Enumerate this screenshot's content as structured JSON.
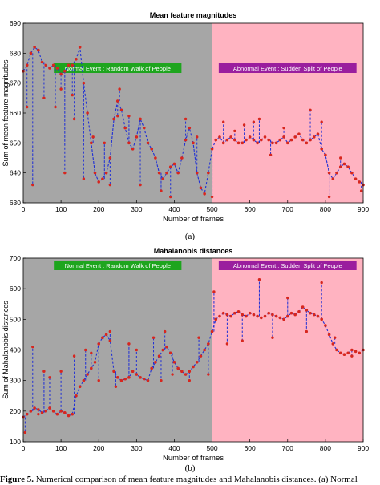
{
  "caption": {
    "prefix": "Figure 5.",
    "text": "Numerical comparison of mean feature magnitudes and Mahalanobis distances. (a) Normal"
  },
  "chart_data": [
    {
      "type": "line",
      "title": "Mean feature magnitudes",
      "panel_label": "(a)",
      "xlabel": "Number of frames",
      "ylabel": "Sum of mean feature magnitudes",
      "xlim": [
        0,
        900
      ],
      "ylim": [
        630,
        690
      ],
      "xticks": [
        0,
        100,
        200,
        300,
        400,
        500,
        600,
        700,
        800,
        900
      ],
      "yticks": [
        630,
        640,
        650,
        660,
        670,
        680,
        690
      ],
      "grid": false,
      "regions": [
        {
          "label": "Normal Event : Random Walk of People",
          "x_start": 0,
          "x_end": 500,
          "color": "#a6a6a6",
          "label_color": "#1ea51e"
        },
        {
          "label": "Abnormal Event : Sudden Split of People",
          "x_start": 500,
          "x_end": 900,
          "color": "#ffb3c1",
          "label_color": "#9a1e9e"
        }
      ],
      "series": [
        {
          "line_color": "#1f2fd6",
          "marker_color": "#d7261e",
          "x": [
            0,
            10,
            20,
            30,
            40,
            50,
            60,
            70,
            80,
            90,
            100,
            110,
            120,
            130,
            140,
            150,
            160,
            170,
            180,
            190,
            200,
            210,
            220,
            230,
            240,
            250,
            260,
            270,
            280,
            290,
            300,
            310,
            320,
            330,
            340,
            350,
            360,
            370,
            380,
            390,
            400,
            410,
            420,
            430,
            440,
            450,
            460,
            470,
            480,
            490,
            500,
            510,
            520,
            530,
            540,
            550,
            560,
            570,
            580,
            590,
            600,
            610,
            620,
            630,
            640,
            650,
            660,
            670,
            680,
            690,
            700,
            710,
            720,
            730,
            740,
            750,
            760,
            770,
            780,
            790,
            800,
            810,
            820,
            830,
            840,
            850,
            860,
            870,
            880,
            890,
            900
          ],
          "y": [
            674,
            676,
            680,
            682,
            681,
            677,
            676,
            675,
            676,
            675,
            673,
            674,
            676,
            676,
            678,
            682,
            670,
            660,
            650,
            640,
            637,
            638,
            640,
            645,
            658,
            664,
            661,
            655,
            650,
            648,
            652,
            658,
            655,
            650,
            648,
            645,
            640,
            638,
            640,
            642,
            643,
            640,
            645,
            651,
            655,
            650,
            640,
            635,
            633,
            640,
            648,
            651,
            652,
            650,
            651,
            652,
            651,
            650,
            650,
            651,
            652,
            651,
            650,
            651,
            652,
            651,
            650,
            650,
            651,
            652,
            650,
            651,
            652,
            653,
            651,
            650,
            651,
            652,
            653,
            648,
            646,
            640,
            638,
            640,
            642,
            643,
            642,
            640,
            638,
            637,
            636
          ]
        }
      ],
      "spikes": [
        {
          "x": 10,
          "y": 662
        },
        {
          "x": 25,
          "y": 636
        },
        {
          "x": 55,
          "y": 665
        },
        {
          "x": 85,
          "y": 662
        },
        {
          "x": 100,
          "y": 668
        },
        {
          "x": 110,
          "y": 640
        },
        {
          "x": 130,
          "y": 666
        },
        {
          "x": 135,
          "y": 658
        },
        {
          "x": 160,
          "y": 638
        },
        {
          "x": 185,
          "y": 652
        },
        {
          "x": 215,
          "y": 650
        },
        {
          "x": 230,
          "y": 636
        },
        {
          "x": 250,
          "y": 659
        },
        {
          "x": 255,
          "y": 668
        },
        {
          "x": 280,
          "y": 659
        },
        {
          "x": 310,
          "y": 636
        },
        {
          "x": 340,
          "y": 648
        },
        {
          "x": 365,
          "y": 634
        },
        {
          "x": 390,
          "y": 632
        },
        {
          "x": 430,
          "y": 658
        },
        {
          "x": 460,
          "y": 652
        },
        {
          "x": 500,
          "y": 632
        },
        {
          "x": 530,
          "y": 657
        },
        {
          "x": 560,
          "y": 654
        },
        {
          "x": 585,
          "y": 656
        },
        {
          "x": 610,
          "y": 657
        },
        {
          "x": 625,
          "y": 658
        },
        {
          "x": 655,
          "y": 646
        },
        {
          "x": 690,
          "y": 655
        },
        {
          "x": 760,
          "y": 661
        },
        {
          "x": 790,
          "y": 657
        },
        {
          "x": 810,
          "y": 632
        },
        {
          "x": 840,
          "y": 645
        },
        {
          "x": 895,
          "y": 634
        }
      ]
    },
    {
      "type": "line",
      "title": "Mahalanobis distances",
      "panel_label": "(b)",
      "xlabel": "Number of frames",
      "ylabel": "Sum of Mahalanobis distances",
      "xlim": [
        0,
        900
      ],
      "ylim": [
        100,
        700
      ],
      "xticks": [
        0,
        100,
        200,
        300,
        400,
        500,
        600,
        700,
        800,
        900
      ],
      "yticks": [
        100,
        200,
        300,
        400,
        500,
        600,
        700
      ],
      "grid": false,
      "regions": [
        {
          "label": "Normal Event : Random Walk of People",
          "x_start": 0,
          "x_end": 500,
          "color": "#a6a6a6",
          "label_color": "#1ea51e"
        },
        {
          "label": "Abnormal Event : Sudden Split of People",
          "x_start": 500,
          "x_end": 900,
          "color": "#ffb3c1",
          "label_color": "#9a1e9e"
        }
      ],
      "series": [
        {
          "line_color": "#1f2fd6",
          "marker_color": "#d7261e",
          "x": [
            0,
            10,
            20,
            30,
            40,
            50,
            60,
            70,
            80,
            90,
            100,
            110,
            120,
            130,
            140,
            150,
            160,
            170,
            180,
            190,
            200,
            210,
            220,
            230,
            240,
            250,
            260,
            270,
            280,
            290,
            300,
            310,
            320,
            330,
            340,
            350,
            360,
            370,
            380,
            390,
            400,
            410,
            420,
            430,
            440,
            450,
            460,
            470,
            480,
            490,
            500,
            510,
            520,
            530,
            540,
            550,
            560,
            570,
            580,
            590,
            600,
            610,
            620,
            630,
            640,
            650,
            660,
            670,
            680,
            690,
            700,
            710,
            720,
            730,
            740,
            750,
            760,
            770,
            780,
            790,
            800,
            810,
            820,
            830,
            840,
            850,
            860,
            870,
            880,
            890,
            900
          ],
          "y": [
            180,
            190,
            200,
            210,
            205,
            195,
            200,
            210,
            200,
            190,
            200,
            195,
            185,
            190,
            250,
            280,
            300,
            320,
            340,
            360,
            420,
            440,
            450,
            430,
            330,
            310,
            300,
            305,
            310,
            330,
            320,
            310,
            305,
            300,
            340,
            360,
            380,
            400,
            410,
            390,
            360,
            340,
            330,
            320,
            330,
            345,
            360,
            380,
            400,
            420,
            460,
            500,
            510,
            520,
            515,
            510,
            520,
            525,
            515,
            510,
            520,
            515,
            510,
            505,
            510,
            520,
            515,
            510,
            505,
            500,
            510,
            520,
            515,
            525,
            540,
            530,
            520,
            515,
            510,
            500,
            480,
            450,
            420,
            400,
            390,
            385,
            390,
            400,
            395,
            390,
            400
          ]
        }
      ],
      "spikes": [
        {
          "x": 5,
          "y": 130
        },
        {
          "x": 25,
          "y": 410
        },
        {
          "x": 40,
          "y": 190
        },
        {
          "x": 55,
          "y": 330
        },
        {
          "x": 70,
          "y": 310
        },
        {
          "x": 100,
          "y": 330
        },
        {
          "x": 135,
          "y": 380
        },
        {
          "x": 165,
          "y": 400
        },
        {
          "x": 180,
          "y": 390
        },
        {
          "x": 200,
          "y": 300
        },
        {
          "x": 230,
          "y": 460
        },
        {
          "x": 245,
          "y": 280
        },
        {
          "x": 280,
          "y": 420
        },
        {
          "x": 300,
          "y": 400
        },
        {
          "x": 345,
          "y": 440
        },
        {
          "x": 365,
          "y": 300
        },
        {
          "x": 375,
          "y": 460
        },
        {
          "x": 395,
          "y": 320
        },
        {
          "x": 440,
          "y": 300
        },
        {
          "x": 465,
          "y": 440
        },
        {
          "x": 490,
          "y": 320
        },
        {
          "x": 505,
          "y": 590
        },
        {
          "x": 540,
          "y": 420
        },
        {
          "x": 580,
          "y": 430
        },
        {
          "x": 625,
          "y": 630
        },
        {
          "x": 660,
          "y": 440
        },
        {
          "x": 700,
          "y": 570
        },
        {
          "x": 750,
          "y": 460
        },
        {
          "x": 790,
          "y": 620
        },
        {
          "x": 825,
          "y": 440
        },
        {
          "x": 870,
          "y": 380
        }
      ]
    }
  ]
}
